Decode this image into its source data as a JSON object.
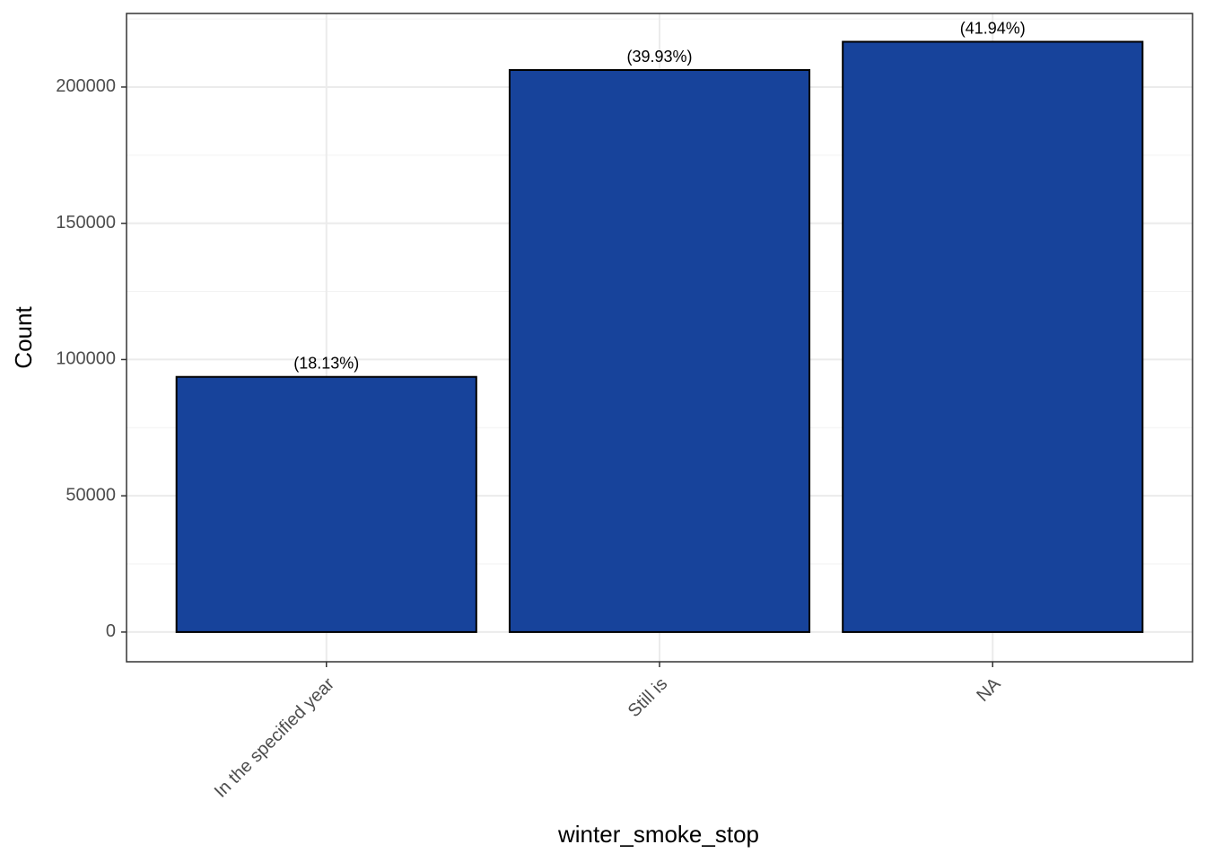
{
  "chart_data": {
    "type": "bar",
    "x_label": "winter_smoke_stop",
    "y_label": "Count",
    "categories": [
      "In the specified year",
      "Still is",
      "NA"
    ],
    "values": [
      93640,
      206240,
      216620
    ],
    "annotations": [
      "(18.13%)",
      "(39.93%)",
      "(41.94%)"
    ],
    "color": "#17439b",
    "ylim": [
      -10900,
      227000
    ],
    "yticks": [
      0,
      50000,
      100000,
      150000,
      200000
    ],
    "minor_yticks": [
      25000,
      75000,
      125000,
      175000,
      225000
    ],
    "grid": true
  }
}
